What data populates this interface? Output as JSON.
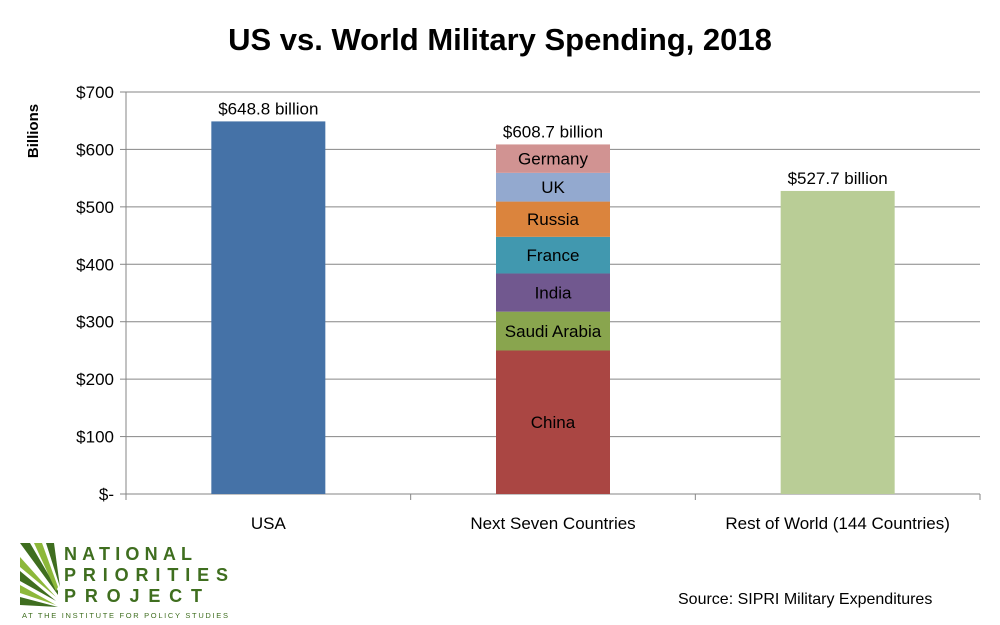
{
  "chart_data": {
    "type": "bar",
    "stacked": true,
    "title": "US vs. World Military Spending, 2018",
    "ylabel": "Billions",
    "xlabel": "",
    "ylim": [
      0,
      700
    ],
    "yticks": [
      0,
      100,
      200,
      300,
      400,
      500,
      600,
      700
    ],
    "ytick_labels": [
      "$-",
      "$100",
      "$200",
      "$300",
      "$400",
      "$500",
      "$600",
      "$700"
    ],
    "grid": true,
    "legend": "none",
    "categories": [
      "USA",
      "Next Seven Countries",
      "Rest of World (144 Countries)"
    ],
    "bars": [
      {
        "category": "USA",
        "total_label": "$648.8 billion",
        "segments": [
          {
            "name": "",
            "value": 648.8,
            "color": "#4572A7"
          }
        ]
      },
      {
        "category": "Next Seven Countries",
        "total_label": "$608.7 billion",
        "segments": [
          {
            "name": "China",
            "value": 249.9,
            "color": "#AA4643"
          },
          {
            "name": "Saudi Arabia",
            "value": 67.6,
            "color": "#89A54E"
          },
          {
            "name": "India",
            "value": 66.5,
            "color": "#71588F"
          },
          {
            "name": "France",
            "value": 63.8,
            "color": "#4198AF"
          },
          {
            "name": "Russia",
            "value": 61.4,
            "color": "#DB843D"
          },
          {
            "name": "UK",
            "value": 50.0,
            "color": "#93A9CF"
          },
          {
            "name": "Germany",
            "value": 49.5,
            "color": "#D19392"
          }
        ]
      },
      {
        "category": "Rest of World (144 Countries)",
        "total_label": "$527.7 billion",
        "segments": [
          {
            "name": "",
            "value": 527.7,
            "color": "#B9CD96"
          }
        ]
      }
    ]
  },
  "source": "Source: SIPRI Military Expenditures",
  "logo": {
    "line1": "NATIONAL",
    "line2": "PRIORITIES",
    "line3": "PROJECT",
    "tagline": "AT THE INSTITUTE FOR POLICY STUDIES",
    "color": "#3F6E1F",
    "light_color": "#8DB83A"
  }
}
